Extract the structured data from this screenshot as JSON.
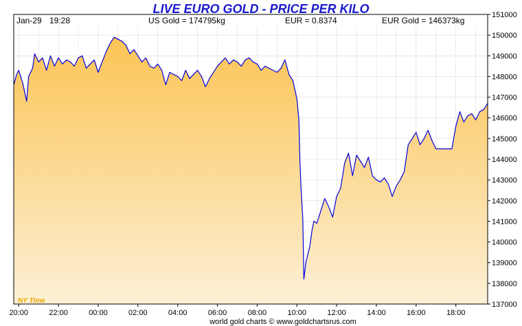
{
  "chart_data": {
    "type": "area",
    "title": "LIVE EURO GOLD - PRICE PER KILO",
    "header": {
      "date": "Jan-29",
      "time": "19:28",
      "us_gold": "US Gold = 174795kg",
      "eur_rate": "EUR = 0.8374",
      "eur_gold": "EUR Gold = 146373kg"
    },
    "watermark": "NY Time",
    "footer": "world gold charts © www.goldchartsrus.com",
    "x_ticks": [
      "20:00",
      "22:00",
      "00:00",
      "02:00",
      "04:00",
      "06:00",
      "08:00",
      "10:00",
      "12:00",
      "14:00",
      "16:00",
      "18:00"
    ],
    "y_ticks": [
      137000,
      138000,
      139000,
      140000,
      141000,
      142000,
      143000,
      144000,
      145000,
      146000,
      147000,
      148000,
      149000,
      150000,
      151000
    ],
    "ylim": [
      137000,
      151000
    ],
    "xlim_hours": [
      -4.25,
      19.6
    ],
    "grid": true,
    "colors": {
      "line": "#0000dd",
      "fill_top": "#fbc455",
      "fill_bottom": "#fdf0d6",
      "grid": "#dcdcdc",
      "title": "#1a1acc",
      "watermark": "#e6a800"
    },
    "series": [
      {
        "x": [
          -4.25,
          -4.1,
          -4.0,
          -3.8,
          -3.6,
          -3.5,
          -3.3,
          -3.2,
          -3.0,
          -2.8,
          -2.6,
          -2.4,
          -2.2,
          -2.0,
          -1.8,
          -1.6,
          -1.4,
          -1.2,
          -1.0,
          -0.8,
          -0.6,
          -0.4,
          -0.2,
          0.0,
          0.2,
          0.4,
          0.6,
          0.8,
          1.0,
          1.2,
          1.4,
          1.6,
          1.8,
          2.0,
          2.2,
          2.4,
          2.6,
          2.8,
          3.0,
          3.2,
          3.4,
          3.6,
          3.8,
          4.0,
          4.2,
          4.4,
          4.6,
          4.8,
          5.0,
          5.2,
          5.4,
          5.6,
          5.8,
          6.0,
          6.2,
          6.4,
          6.6,
          6.8,
          7.0,
          7.2,
          7.4,
          7.6,
          7.8,
          8.0,
          8.2,
          8.4,
          8.6,
          8.8,
          9.0,
          9.2,
          9.4,
          9.6,
          9.8,
          10.0,
          10.1,
          10.15,
          10.2,
          10.3,
          10.35,
          10.45,
          10.55,
          10.65,
          10.75,
          10.85,
          11.0,
          11.2,
          11.4,
          11.6,
          11.8,
          12.0,
          12.2,
          12.4,
          12.6,
          12.8,
          13.0,
          13.2,
          13.4,
          13.6,
          13.8,
          14.0,
          14.2,
          14.4,
          14.6,
          14.8,
          15.0,
          15.2,
          15.4,
          15.6,
          15.8,
          16.0,
          16.2,
          16.4,
          16.6,
          16.8,
          17.0,
          17.2,
          17.4,
          17.6,
          17.8,
          18.0,
          18.2,
          18.4,
          18.6,
          18.8,
          19.0,
          19.2,
          19.4,
          19.6
        ],
        "y": [
          147600,
          148100,
          148300,
          147700,
          146800,
          148000,
          148400,
          149100,
          148700,
          148900,
          148300,
          149000,
          148500,
          148900,
          148600,
          148800,
          148700,
          148500,
          148900,
          149000,
          148400,
          148600,
          148800,
          148200,
          148700,
          149200,
          149600,
          149900,
          149800,
          149700,
          149500,
          149100,
          149300,
          149000,
          148700,
          148900,
          148500,
          148400,
          148600,
          148300,
          147600,
          148200,
          148100,
          148000,
          147800,
          148300,
          147900,
          148100,
          148300,
          148000,
          147500,
          147900,
          148200,
          148500,
          148700,
          148900,
          148600,
          148800,
          148700,
          148500,
          148800,
          148900,
          148700,
          148600,
          148300,
          148500,
          148400,
          148300,
          148200,
          148400,
          148800,
          148100,
          147800,
          146900,
          145900,
          144000,
          142700,
          141100,
          138200,
          139000,
          139400,
          139800,
          140500,
          141000,
          140900,
          141500,
          142100,
          141700,
          141200,
          142200,
          142600,
          143800,
          144300,
          143200,
          144200,
          143900,
          143600,
          144100,
          143200,
          143000,
          142900,
          143100,
          142800,
          142200,
          142700,
          143000,
          143400,
          144700,
          145000,
          145300,
          144700,
          145000,
          145400,
          144900,
          144500,
          144500,
          144500,
          144500,
          144500,
          145600,
          146300,
          145800,
          146100,
          146200,
          145900,
          146300,
          146400,
          146700
        ]
      }
    ]
  }
}
